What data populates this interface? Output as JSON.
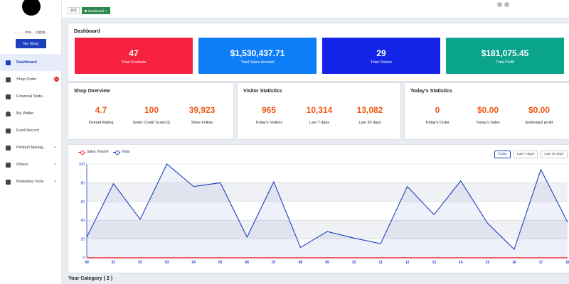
{
  "sidebar": {
    "username": "… … ..mai….n@qi...",
    "my_shop_label": "My Shop",
    "items": [
      {
        "label": "Dashboard"
      },
      {
        "label": "Shop Order",
        "badge": "10"
      },
      {
        "label": "Financial State..."
      },
      {
        "label": "My Wallet"
      },
      {
        "label": "Fund Record"
      },
      {
        "label": "Product Manag..."
      },
      {
        "label": "Others"
      },
      {
        "label": "Marketing Tools"
      }
    ]
  },
  "topbar": {
    "home_tab": "首页",
    "active_tab": "Dashboard"
  },
  "dashboard": {
    "title": "Dashboard",
    "tiles": [
      {
        "value": "47",
        "label": "Total Products",
        "color": "#f7223f"
      },
      {
        "value": "$1,530,437.71",
        "label": "Total Sales Amount",
        "color": "#0d7ef5"
      },
      {
        "value": "29",
        "label": "Total Orders",
        "color": "#1424e8"
      },
      {
        "value": "$181,075.45",
        "label": "Total Profit",
        "color": "#0aa48c"
      }
    ]
  },
  "shop_overview": {
    "title": "Shop Overview",
    "metrics": [
      {
        "value": "4.7",
        "label": "Overall Rating"
      },
      {
        "value": "100",
        "label": "Seller Credit Score"
      },
      {
        "value": "39,923",
        "label": "Store Follow"
      }
    ]
  },
  "visitor_statistics": {
    "title": "Visitor Statistics",
    "metrics": [
      {
        "value": "965",
        "label": "Today's Visitors"
      },
      {
        "value": "10,314",
        "label": "Last 7 days"
      },
      {
        "value": "13,082",
        "label": "Last 30 days"
      }
    ]
  },
  "todays_statistics": {
    "title": "Today's Statistics",
    "metrics": [
      {
        "value": "0",
        "label": "Today's Order"
      },
      {
        "value": "$0.00",
        "label": "Today's Sales"
      },
      {
        "value": "$0.00",
        "label": "Estimated profit"
      }
    ]
  },
  "chart_controls": {
    "today": "Today",
    "last7": "Last 7 days",
    "last30": "Last 30 days"
  },
  "chart_data": {
    "type": "line",
    "title": "",
    "xlabel": "",
    "ylabel": "",
    "ylim": [
      0,
      100
    ],
    "yticks": [
      "0",
      "20",
      "40",
      "60",
      "80",
      "100"
    ],
    "categories": [
      "00",
      "01",
      "02",
      "03",
      "04",
      "05",
      "06",
      "07",
      "08",
      "09",
      "10",
      "11",
      "12",
      "13",
      "14",
      "15",
      "16",
      "17",
      "18"
    ],
    "series": [
      {
        "name": "Sales Volume",
        "color": "#e5262d",
        "values": [
          0,
          0,
          0,
          0,
          0,
          0,
          0,
          0,
          0,
          0,
          0,
          0,
          0,
          0,
          0,
          0,
          0,
          0,
          0
        ]
      },
      {
        "name": "Visits",
        "color": "#1a3fbf",
        "values": [
          22,
          79,
          41,
          100,
          76,
          80,
          22,
          81,
          11,
          28,
          21,
          15,
          76,
          46,
          82,
          37,
          9,
          94,
          38
        ]
      }
    ]
  },
  "category": {
    "title": "Your Category ( 2 )"
  }
}
